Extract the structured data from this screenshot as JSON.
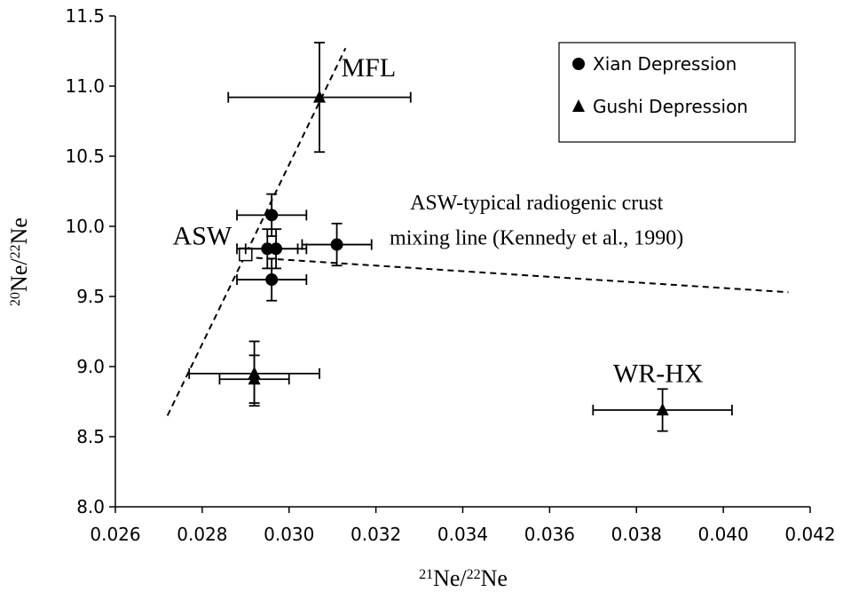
{
  "chart_data": {
    "type": "scatter",
    "xlabel": {
      "sup1": "21",
      "base1": "Ne/",
      "sup2": "22",
      "base2": "Ne"
    },
    "ylabel": {
      "sup1": "20",
      "base1": "Ne/",
      "sup2": "22",
      "base2": "Ne"
    },
    "xlim": [
      0.026,
      0.042
    ],
    "ylim": [
      8.0,
      11.5
    ],
    "x_ticks": [
      "0.026",
      "0.028",
      "0.030",
      "0.032",
      "0.034",
      "0.036",
      "0.038",
      "0.040",
      "0.042"
    ],
    "y_ticks": [
      "8.0",
      "8.5",
      "9.0",
      "9.5",
      "10.0",
      "10.5",
      "11.0",
      "11.5"
    ],
    "grid": false,
    "legend_position": "top-right",
    "legend": [
      {
        "label": "Xian Depression",
        "marker": "circle"
      },
      {
        "label": "Gushi Depression",
        "marker": "triangle"
      }
    ],
    "series": [
      {
        "name": "Xian Depression",
        "marker": "circle",
        "points": [
          {
            "x": 0.0296,
            "y": 10.08,
            "xerr": 0.0008,
            "yerr": 0.15
          },
          {
            "x": 0.0295,
            "y": 9.84,
            "xerr": 0.0007,
            "yerr": 0.14
          },
          {
            "x": 0.0297,
            "y": 9.84,
            "xerr": 0.0007,
            "yerr": 0.14
          },
          {
            "x": 0.0311,
            "y": 9.87,
            "xerr": 0.0008,
            "yerr": 0.15
          },
          {
            "x": 0.0296,
            "y": 9.62,
            "xerr": 0.0008,
            "yerr": 0.15
          }
        ]
      },
      {
        "name": "Gushi Depression",
        "marker": "triangle",
        "points": [
          {
            "x": 0.0307,
            "y": 10.92,
            "xerr": 0.0021,
            "yerr": 0.39
          },
          {
            "x": 0.0292,
            "y": 8.95,
            "xerr": 0.0015,
            "yerr": 0.23
          },
          {
            "x": 0.0292,
            "y": 8.91,
            "xerr": 0.0008,
            "yerr": 0.17
          },
          {
            "x": 0.0386,
            "y": 8.69,
            "xerr": 0.0016,
            "yerr": 0.15
          }
        ]
      }
    ],
    "reference_points": [
      {
        "label": "ASW",
        "x": 0.029,
        "y": 9.8,
        "marker": "open-square"
      }
    ],
    "lines": [
      {
        "label": "MFL",
        "style": "dashed",
        "from": [
          0.0272,
          8.65
        ],
        "to": [
          0.0313,
          11.27
        ]
      },
      {
        "label": "ASW-typical radiogenic crust mixing line (Kennedy et al., 1990)",
        "style": "dashed",
        "from": [
          0.029,
          9.78
        ],
        "to": [
          0.0415,
          9.53
        ]
      }
    ],
    "annotations": [
      {
        "id": "mfl",
        "text": "MFL",
        "x": 0.0312,
        "y": 11.07
      },
      {
        "id": "asw",
        "text": "ASW",
        "x": 0.028,
        "y": 9.87
      },
      {
        "id": "mix1",
        "text": "ASW-typical radiogenic crust",
        "x": 0.0357,
        "y": 10.12
      },
      {
        "id": "mix2",
        "text": "mixing line (Kennedy et al., 1990)",
        "x": 0.0357,
        "y": 9.87
      },
      {
        "id": "wrhx",
        "text": "WR-HX",
        "x": 0.0385,
        "y": 8.89
      }
    ]
  }
}
